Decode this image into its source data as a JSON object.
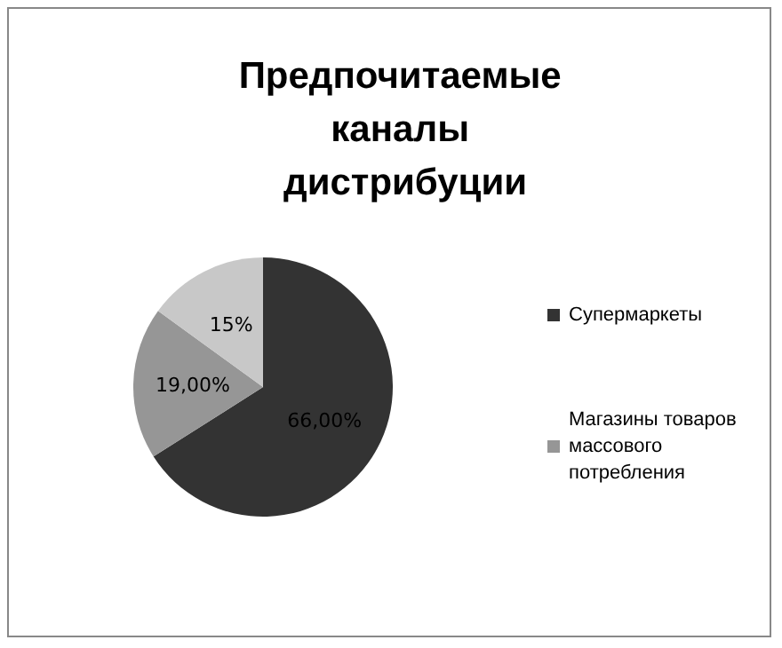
{
  "chart_data": {
    "type": "pie",
    "title": "Предпочитаемые каналы дистрибуции",
    "categories": [
      "Супермаркеты",
      "Магазины товаров массового потребления",
      null
    ],
    "values": [
      66,
      19,
      15
    ],
    "colors": [
      "#333333",
      "#969696",
      "#c8c8c8"
    ],
    "value_labels": [
      "66,00%",
      "19,00%",
      "15%"
    ],
    "legend": "right"
  }
}
